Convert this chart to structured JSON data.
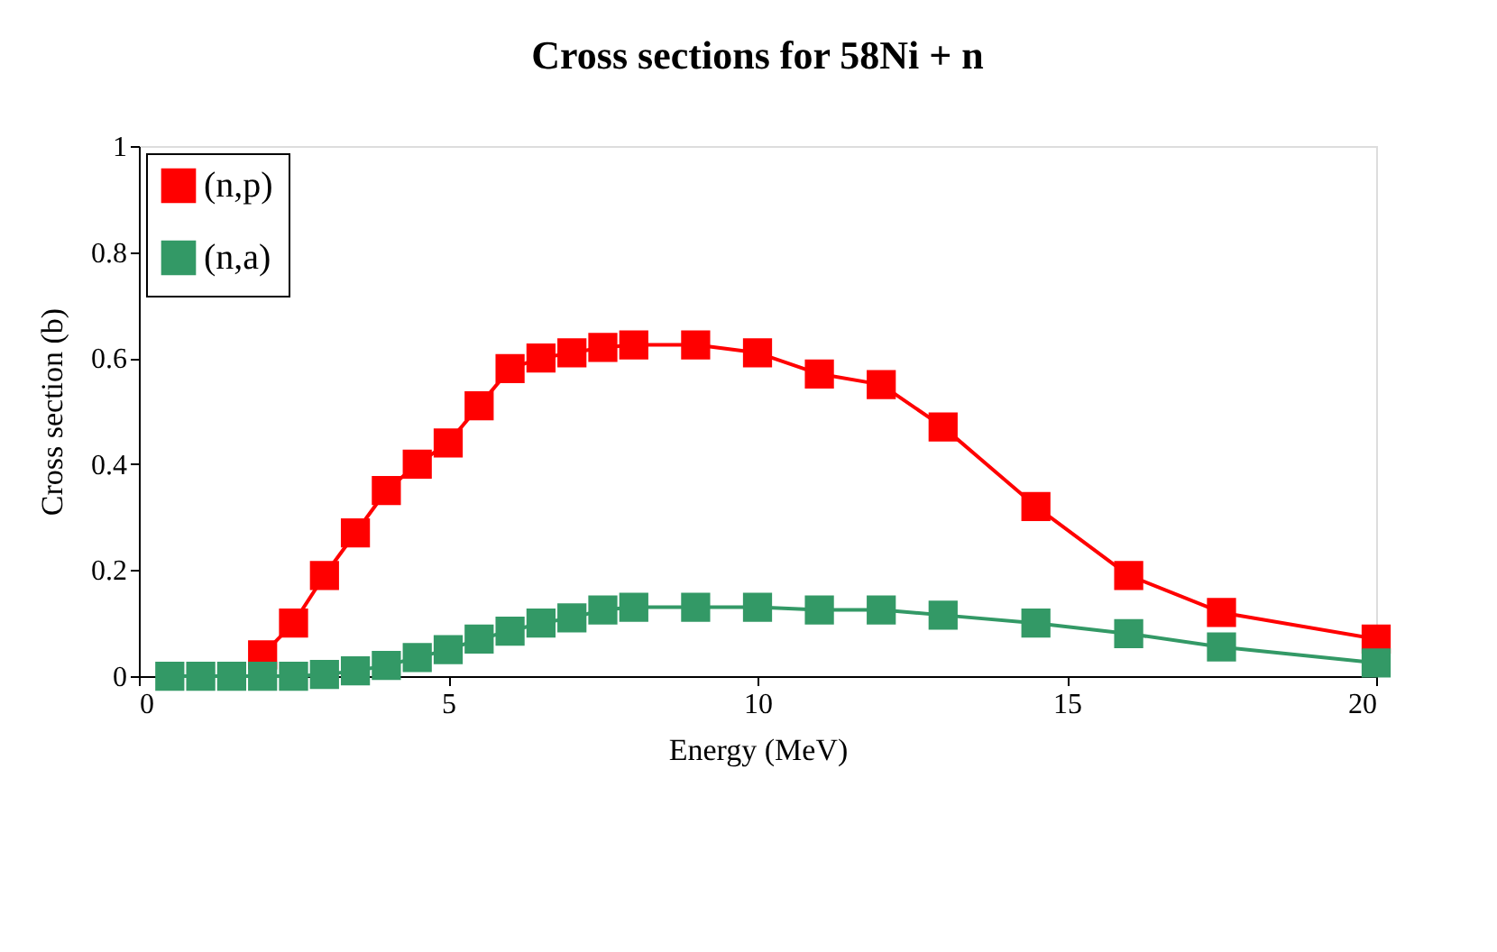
{
  "chart_data": {
    "type": "line",
    "title": "Cross sections for 58Ni + n",
    "xlabel": "Energy (MeV)",
    "ylabel": "Cross section (b)",
    "xlim": [
      0,
      20
    ],
    "xticks": [
      0,
      5,
      10,
      15,
      20
    ],
    "ylim": [
      0,
      1
    ],
    "yticks": [
      0,
      0.2,
      0.4,
      0.6,
      0.8,
      1
    ],
    "grid": false,
    "legend": "top left",
    "marker": "square",
    "line_style": "solid",
    "series": [
      {
        "name": "(n,p)",
        "color": "#ff0000",
        "x": [
          2,
          2.5,
          3,
          3.5,
          4,
          4.5,
          5,
          5.5,
          6,
          6.5,
          7,
          7.5,
          8,
          9,
          10,
          11,
          12,
          13,
          14.5,
          16,
          17.5,
          20
        ],
        "values": [
          0.04,
          0.1,
          0.19,
          0.27,
          0.35,
          0.4,
          0.44,
          0.51,
          0.58,
          0.6,
          0.61,
          0.62,
          0.625,
          0.625,
          0.61,
          0.57,
          0.55,
          0.47,
          0.32,
          0.19,
          0.12,
          0.07
        ]
      },
      {
        "name": "(n,a)",
        "color": "#339966",
        "x": [
          0.5,
          1,
          1.5,
          2,
          2.5,
          3,
          3.5,
          4,
          4.5,
          5,
          5.5,
          6,
          6.5,
          7,
          7.5,
          8,
          9,
          10,
          11,
          12,
          13,
          14.5,
          16,
          17.5,
          20
        ],
        "values": [
          0,
          0,
          0,
          0,
          0,
          0.003,
          0.01,
          0.02,
          0.035,
          0.05,
          0.07,
          0.085,
          0.1,
          0.11,
          0.125,
          0.13,
          0.13,
          0.13,
          0.125,
          0.125,
          0.115,
          0.1,
          0.08,
          0.055,
          0.025
        ]
      }
    ]
  }
}
